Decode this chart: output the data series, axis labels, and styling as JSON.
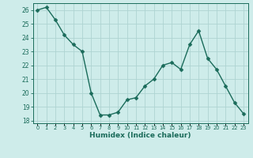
{
  "x": [
    0,
    1,
    2,
    3,
    4,
    5,
    6,
    7,
    8,
    9,
    10,
    11,
    12,
    13,
    14,
    15,
    16,
    17,
    18,
    19,
    20,
    21,
    22,
    23
  ],
  "y": [
    26.0,
    26.2,
    25.3,
    24.2,
    23.5,
    23.0,
    20.0,
    18.4,
    18.4,
    18.6,
    19.5,
    19.65,
    20.5,
    21.0,
    22.0,
    22.2,
    21.7,
    23.5,
    24.5,
    22.5,
    21.7,
    20.5,
    19.3,
    18.5
  ],
  "line_color": "#1a6b5a",
  "marker": "D",
  "marker_size": 2.5,
  "bg_color": "#ceecea",
  "grid_color": "#aed4d2",
  "xlabel": "Humidex (Indice chaleur)",
  "ylim": [
    17.8,
    26.5
  ],
  "yticks": [
    18,
    19,
    20,
    21,
    22,
    23,
    24,
    25,
    26
  ],
  "xtick_labels": [
    "0",
    "1",
    "2",
    "3",
    "4",
    "5",
    "6",
    "7",
    "8",
    "9",
    "10",
    "11",
    "12",
    "13",
    "14",
    "15",
    "16",
    "17",
    "18",
    "19",
    "20",
    "21",
    "22",
    "23"
  ],
  "axis_color": "#1a6b5a",
  "tick_color": "#1a6b5a",
  "label_color": "#1a6b5a",
  "linewidth": 1.0
}
